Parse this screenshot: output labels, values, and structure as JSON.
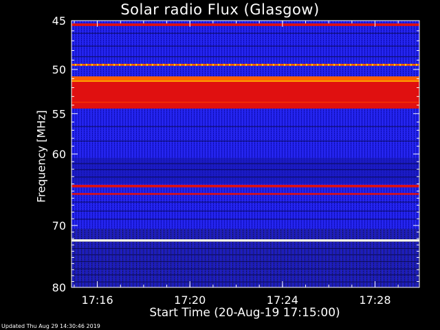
{
  "chart_data": {
    "type": "heatmap",
    "title": "Solar radio Flux (Glasgow)",
    "xlabel": "Start Time (20-Aug-19 17:15:00)",
    "ylabel": "Frequency [MHz]",
    "x_range_minutes": [
      "17:14:53",
      "17:29:55"
    ],
    "x_ticks": [
      "17:16",
      "17:20",
      "17:24",
      "17:28"
    ],
    "y_range_mhz": [
      45,
      80
    ],
    "y_scale": "log",
    "y_ticks": [
      45,
      50,
      55,
      60,
      70,
      80
    ],
    "colormap": "blue-red-yellow-white",
    "bands": [
      {
        "freq_mhz": 45.4,
        "width_mhz": 0.25,
        "level": 0.75
      },
      {
        "freq_mhz": 49.5,
        "width_mhz": 0.2,
        "level": 0.85
      },
      {
        "freq_mhz": 51.0,
        "width_mhz": 0.5,
        "level": 0.9
      },
      {
        "freq_mhz": 52.8,
        "width_mhz": 3.2,
        "level": 0.8
      },
      {
        "freq_mhz": 64.3,
        "width_mhz": 0.35,
        "level": 0.75
      },
      {
        "freq_mhz": 65.4,
        "width_mhz": 0.25,
        "level": 0.7
      },
      {
        "freq_mhz": 72.3,
        "width_mhz": 0.35,
        "level": 1.0
      }
    ]
  },
  "footer": "Updated Thu Aug 29 14:30:46 2019"
}
